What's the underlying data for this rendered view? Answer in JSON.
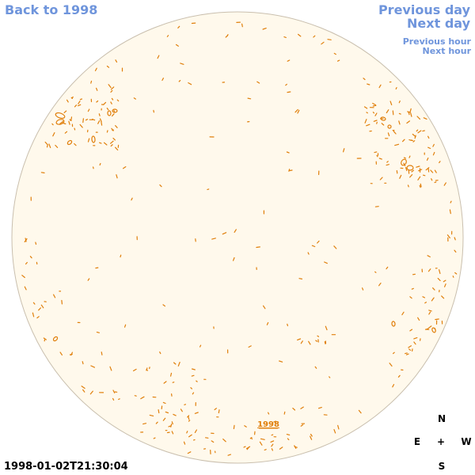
{
  "nav": {
    "back": "Back to 1998",
    "previous_day": "Previous day",
    "next_day": "Next day",
    "previous_hour": "Previous hour",
    "next_hour": "Next hour"
  },
  "timestamp": "1998-01-02T21:30:04",
  "disk_label": "1998",
  "compass": {
    "north": "N",
    "east": "E",
    "center": "+",
    "west": "W",
    "south": "S"
  },
  "colors": {
    "link": "#6f95dc",
    "disk_fill": "#fff9ec",
    "disk_edge": "#c9bfae",
    "contour": "#e07f0b"
  }
}
